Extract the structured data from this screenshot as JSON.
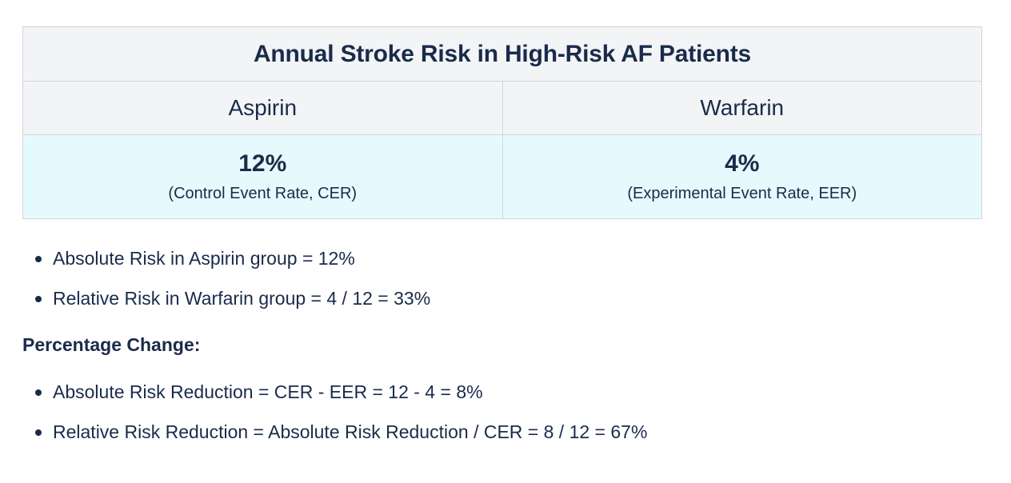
{
  "table": {
    "title": "Annual Stroke Risk in High-Risk AF Patients",
    "columns": [
      {
        "header": "Aspirin",
        "value": "12%",
        "note": "(Control Event Rate, CER)"
      },
      {
        "header": "Warfarin",
        "value": "4%",
        "note": "(Experimental Event Rate, EER)"
      }
    ]
  },
  "list_one": [
    "Absolute Risk in Aspirin group = 12%",
    "Relative Risk in Warfarin group = 4 / 12 = 33%"
  ],
  "section_heading": "Percentage Change:",
  "list_two": [
    "Absolute Risk Reduction = CER - EER = 12 - 4 = 8%",
    "Relative Risk Reduction = Absolute Risk Reduction / CER = 8 / 12 = 67%"
  ],
  "colors": {
    "text": "#1a2b4a",
    "header_bg": "#f3f4f6",
    "value_bg": "#e5fafd",
    "border": "#cfd6de"
  }
}
